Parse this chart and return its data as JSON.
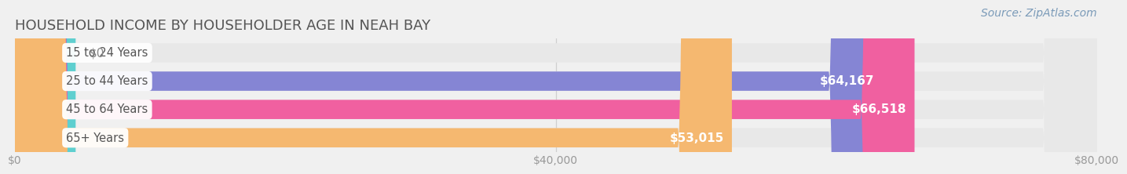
{
  "title": "HOUSEHOLD INCOME BY HOUSEHOLDER AGE IN NEAH BAY",
  "source": "Source: ZipAtlas.com",
  "categories": [
    "15 to 24 Years",
    "25 to 44 Years",
    "45 to 64 Years",
    "65+ Years"
  ],
  "values": [
    0,
    64167,
    66518,
    53015
  ],
  "bar_colors": [
    "#5ecfcf",
    "#8585d4",
    "#f060a0",
    "#f5b870"
  ],
  "label_colors": [
    "#555555",
    "#ffffff",
    "#ffffff",
    "#ffffff"
  ],
  "value_label_0": "$0",
  "xlim": [
    0,
    80000
  ],
  "xticks": [
    0,
    40000,
    80000
  ],
  "xtick_labels": [
    "$0",
    "$40,000",
    "$80,000"
  ],
  "background_color": "#f0f0f0",
  "bar_bg_color": "#e8e8e8",
  "title_color": "#555555",
  "title_fontsize": 13,
  "source_color": "#7a9ab8",
  "source_fontsize": 10,
  "bar_height": 0.68,
  "bar_label_fontsize": 11,
  "cat_label_fontsize": 10.5,
  "grid_color": "#d0d0d0",
  "tick_label_color": "#999999"
}
